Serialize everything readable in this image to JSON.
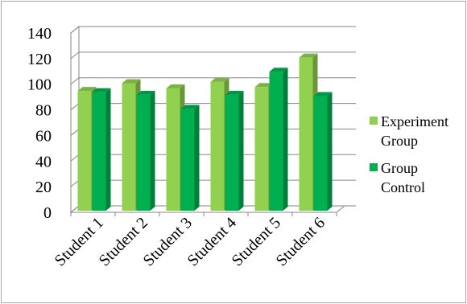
{
  "chart_data": {
    "type": "bar",
    "title": "",
    "xlabel": "",
    "ylabel": "",
    "categories": [
      "Student 1",
      "Student 2",
      "Student 3",
      "Student 4",
      "Student 5",
      "Student 6"
    ],
    "series": [
      {
        "name": "Experiment Group",
        "values": [
          96,
          102,
          98,
          103,
          99,
          122
        ],
        "color": "#92d050"
      },
      {
        "name": "Group Control",
        "values": [
          95,
          93,
          82,
          93,
          111,
          92
        ],
        "color": "#00b050"
      }
    ],
    "ylim": [
      0,
      140
    ],
    "yticks": [
      0,
      20,
      40,
      60,
      80,
      100,
      120,
      140
    ],
    "grid": true,
    "legend_position": "right",
    "style": "3d-clustered-column"
  },
  "legend": {
    "series1_lines": [
      "Experiment",
      "Group"
    ],
    "series2_lines": [
      "Group",
      "Control"
    ]
  }
}
